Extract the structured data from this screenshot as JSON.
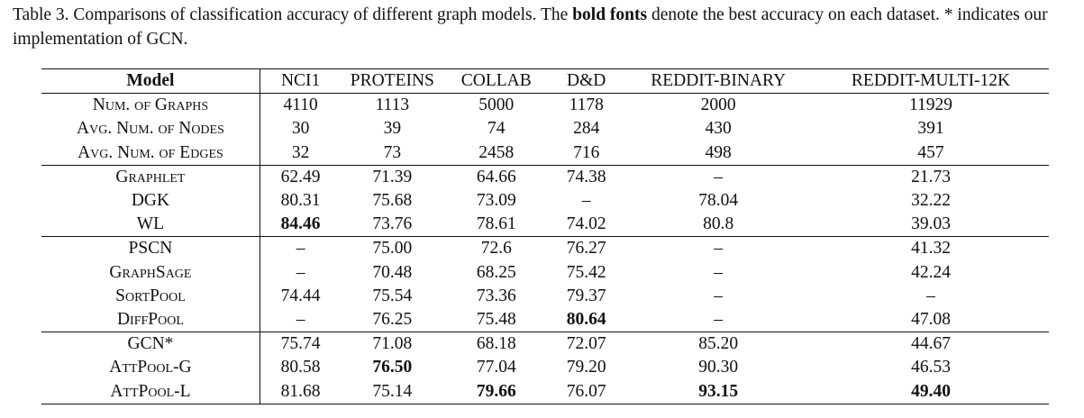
{
  "caption": {
    "prefix": "Table 3. Comparisons of classification accuracy of different graph models. The ",
    "bold": "bold fonts",
    "suffix": " denote the best accuracy on each dataset. * indicates our implementation of GCN."
  },
  "table": {
    "header": [
      "Model",
      "NCI1",
      "PROTEINS",
      "COLLAB",
      "D&D",
      "REDDIT-BINARY",
      "REDDIT-MULTI-12K"
    ],
    "stats": [
      {
        "label": "Num. of Graphs",
        "cells": [
          "4110",
          "1113",
          "5000",
          "1178",
          "2000",
          "11929"
        ]
      },
      {
        "label": "Avg. Num. of Nodes",
        "cells": [
          "30",
          "39",
          "74",
          "284",
          "430",
          "391"
        ]
      },
      {
        "label": "Avg. Num. of Edges",
        "cells": [
          "32",
          "73",
          "2458",
          "716",
          "498",
          "457"
        ]
      }
    ],
    "kernels": [
      {
        "label": "Graphlet",
        "cells": [
          "62.49",
          "71.39",
          "64.66",
          "74.38",
          "–",
          "21.73"
        ]
      },
      {
        "label": "DGK",
        "cells": [
          "80.31",
          "75.68",
          "73.09",
          "–",
          "78.04",
          "32.22"
        ]
      },
      {
        "label": "WL",
        "cells": [
          "84.46",
          "73.76",
          "78.61",
          "74.02",
          "80.8",
          "39.03"
        ]
      }
    ],
    "gnns": [
      {
        "label": "PSCN",
        "cells": [
          "–",
          "75.00",
          "72.6",
          "76.27",
          "–",
          "41.32"
        ]
      },
      {
        "label": "GraphSage",
        "cells": [
          "–",
          "70.48",
          "68.25",
          "75.42",
          "–",
          "42.24"
        ]
      },
      {
        "label": "SortPool",
        "cells": [
          "74.44",
          "75.54",
          "73.36",
          "79.37",
          "–",
          "–"
        ]
      },
      {
        "label": "DiffPool",
        "cells": [
          "–",
          "76.25",
          "75.48",
          "80.64",
          "–",
          "47.08"
        ]
      }
    ],
    "ours": [
      {
        "label": "GCN*",
        "cells": [
          "75.74",
          "71.08",
          "68.18",
          "72.07",
          "85.20",
          "44.67"
        ]
      },
      {
        "label": "AttPool-G",
        "cells": [
          "80.58",
          "76.50",
          "77.04",
          "79.20",
          "90.30",
          "46.53"
        ]
      },
      {
        "label": "AttPool-L",
        "cells": [
          "81.68",
          "75.14",
          "79.66",
          "76.07",
          "93.15",
          "49.40"
        ]
      }
    ]
  }
}
